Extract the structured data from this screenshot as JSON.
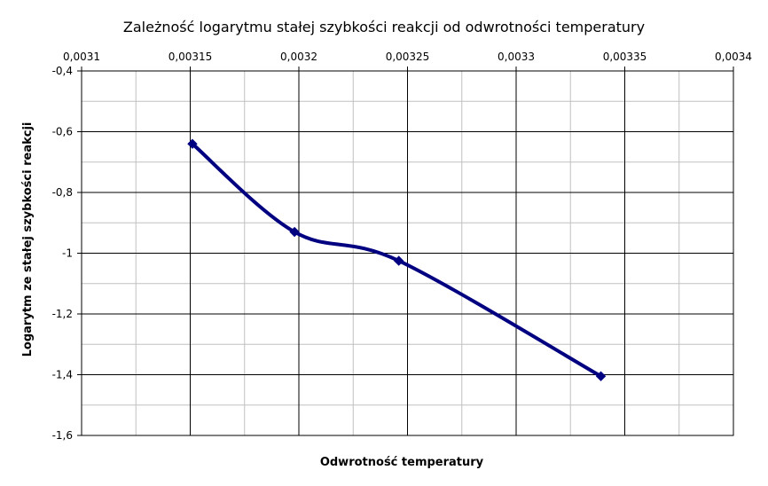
{
  "chart_data": {
    "type": "line",
    "title": "Zależność logarytmu stałej szybkości reakcji od odwrotności temperatury",
    "xlabel": "Odwrotność temperatury",
    "ylabel": "Logarytm ze stałej szybkości reakcji",
    "x_axis_position": "top",
    "xlim": [
      0.0031,
      0.0034
    ],
    "ylim": [
      -1.6,
      -0.4
    ],
    "x_ticks": [
      0.0031,
      0.00315,
      0.0032,
      0.00325,
      0.0033,
      0.00335,
      0.0034
    ],
    "x_tick_labels": [
      "0,0031",
      "0,00315",
      "0,0032",
      "0,00325",
      "0,0033",
      "0,00335",
      "0,0034"
    ],
    "y_ticks": [
      -0.4,
      -0.6,
      -0.8,
      -1.0,
      -1.2,
      -1.4,
      -1.6
    ],
    "y_tick_labels": [
      "-0,4",
      "-0,6",
      "-0,8",
      "-1",
      "-1,2",
      "-1,4",
      "-1,6"
    ],
    "x_minor_step": 2.5e-05,
    "y_minor_step": 0.1,
    "grid": true,
    "legend": "none",
    "series": [
      {
        "color": "#000080",
        "marker": "diamond",
        "smooth": true,
        "points": [
          {
            "x": 0.003151,
            "y": -0.64
          },
          {
            "x": 0.003198,
            "y": -0.93
          },
          {
            "x": 0.003246,
            "y": -1.025
          },
          {
            "x": 0.003339,
            "y": -1.405
          }
        ]
      }
    ]
  }
}
